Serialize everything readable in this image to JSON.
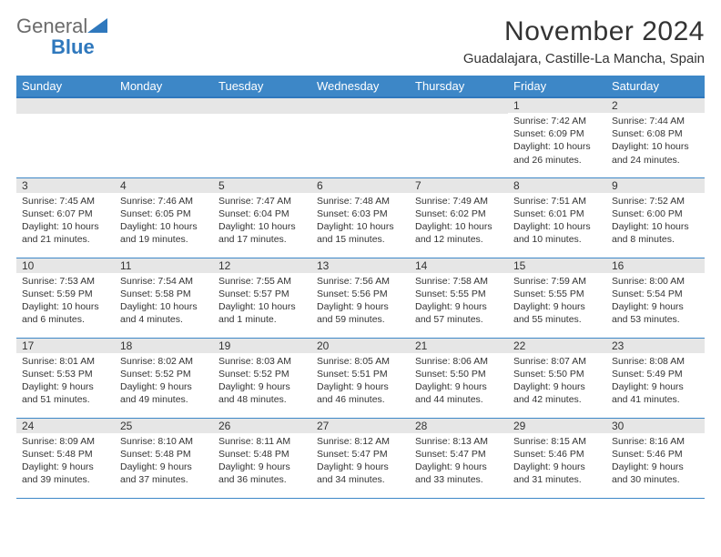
{
  "logo": {
    "text1": "General",
    "text2": "Blue"
  },
  "title": "November 2024",
  "location": "Guadalajara, Castille-La Mancha, Spain",
  "colors": {
    "header_bg": "#3d87c7",
    "header_border": "#2f78bd",
    "daynum_bg": "#e6e6e6",
    "cell_border": "#3d87c7",
    "text": "#333333",
    "logo_gray": "#6b6b6b",
    "logo_blue": "#2f78bd",
    "page_bg": "#ffffff"
  },
  "weekdays": [
    "Sunday",
    "Monday",
    "Tuesday",
    "Wednesday",
    "Thursday",
    "Friday",
    "Saturday"
  ],
  "weeks": [
    [
      null,
      null,
      null,
      null,
      null,
      {
        "d": "1",
        "sr": "Sunrise: 7:42 AM",
        "ss": "Sunset: 6:09 PM",
        "dl1": "Daylight: 10 hours",
        "dl2": "and 26 minutes."
      },
      {
        "d": "2",
        "sr": "Sunrise: 7:44 AM",
        "ss": "Sunset: 6:08 PM",
        "dl1": "Daylight: 10 hours",
        "dl2": "and 24 minutes."
      }
    ],
    [
      {
        "d": "3",
        "sr": "Sunrise: 7:45 AM",
        "ss": "Sunset: 6:07 PM",
        "dl1": "Daylight: 10 hours",
        "dl2": "and 21 minutes."
      },
      {
        "d": "4",
        "sr": "Sunrise: 7:46 AM",
        "ss": "Sunset: 6:05 PM",
        "dl1": "Daylight: 10 hours",
        "dl2": "and 19 minutes."
      },
      {
        "d": "5",
        "sr": "Sunrise: 7:47 AM",
        "ss": "Sunset: 6:04 PM",
        "dl1": "Daylight: 10 hours",
        "dl2": "and 17 minutes."
      },
      {
        "d": "6",
        "sr": "Sunrise: 7:48 AM",
        "ss": "Sunset: 6:03 PM",
        "dl1": "Daylight: 10 hours",
        "dl2": "and 15 minutes."
      },
      {
        "d": "7",
        "sr": "Sunrise: 7:49 AM",
        "ss": "Sunset: 6:02 PM",
        "dl1": "Daylight: 10 hours",
        "dl2": "and 12 minutes."
      },
      {
        "d": "8",
        "sr": "Sunrise: 7:51 AM",
        "ss": "Sunset: 6:01 PM",
        "dl1": "Daylight: 10 hours",
        "dl2": "and 10 minutes."
      },
      {
        "d": "9",
        "sr": "Sunrise: 7:52 AM",
        "ss": "Sunset: 6:00 PM",
        "dl1": "Daylight: 10 hours",
        "dl2": "and 8 minutes."
      }
    ],
    [
      {
        "d": "10",
        "sr": "Sunrise: 7:53 AM",
        "ss": "Sunset: 5:59 PM",
        "dl1": "Daylight: 10 hours",
        "dl2": "and 6 minutes."
      },
      {
        "d": "11",
        "sr": "Sunrise: 7:54 AM",
        "ss": "Sunset: 5:58 PM",
        "dl1": "Daylight: 10 hours",
        "dl2": "and 4 minutes."
      },
      {
        "d": "12",
        "sr": "Sunrise: 7:55 AM",
        "ss": "Sunset: 5:57 PM",
        "dl1": "Daylight: 10 hours",
        "dl2": "and 1 minute."
      },
      {
        "d": "13",
        "sr": "Sunrise: 7:56 AM",
        "ss": "Sunset: 5:56 PM",
        "dl1": "Daylight: 9 hours",
        "dl2": "and 59 minutes."
      },
      {
        "d": "14",
        "sr": "Sunrise: 7:58 AM",
        "ss": "Sunset: 5:55 PM",
        "dl1": "Daylight: 9 hours",
        "dl2": "and 57 minutes."
      },
      {
        "d": "15",
        "sr": "Sunrise: 7:59 AM",
        "ss": "Sunset: 5:55 PM",
        "dl1": "Daylight: 9 hours",
        "dl2": "and 55 minutes."
      },
      {
        "d": "16",
        "sr": "Sunrise: 8:00 AM",
        "ss": "Sunset: 5:54 PM",
        "dl1": "Daylight: 9 hours",
        "dl2": "and 53 minutes."
      }
    ],
    [
      {
        "d": "17",
        "sr": "Sunrise: 8:01 AM",
        "ss": "Sunset: 5:53 PM",
        "dl1": "Daylight: 9 hours",
        "dl2": "and 51 minutes."
      },
      {
        "d": "18",
        "sr": "Sunrise: 8:02 AM",
        "ss": "Sunset: 5:52 PM",
        "dl1": "Daylight: 9 hours",
        "dl2": "and 49 minutes."
      },
      {
        "d": "19",
        "sr": "Sunrise: 8:03 AM",
        "ss": "Sunset: 5:52 PM",
        "dl1": "Daylight: 9 hours",
        "dl2": "and 48 minutes."
      },
      {
        "d": "20",
        "sr": "Sunrise: 8:05 AM",
        "ss": "Sunset: 5:51 PM",
        "dl1": "Daylight: 9 hours",
        "dl2": "and 46 minutes."
      },
      {
        "d": "21",
        "sr": "Sunrise: 8:06 AM",
        "ss": "Sunset: 5:50 PM",
        "dl1": "Daylight: 9 hours",
        "dl2": "and 44 minutes."
      },
      {
        "d": "22",
        "sr": "Sunrise: 8:07 AM",
        "ss": "Sunset: 5:50 PM",
        "dl1": "Daylight: 9 hours",
        "dl2": "and 42 minutes."
      },
      {
        "d": "23",
        "sr": "Sunrise: 8:08 AM",
        "ss": "Sunset: 5:49 PM",
        "dl1": "Daylight: 9 hours",
        "dl2": "and 41 minutes."
      }
    ],
    [
      {
        "d": "24",
        "sr": "Sunrise: 8:09 AM",
        "ss": "Sunset: 5:48 PM",
        "dl1": "Daylight: 9 hours",
        "dl2": "and 39 minutes."
      },
      {
        "d": "25",
        "sr": "Sunrise: 8:10 AM",
        "ss": "Sunset: 5:48 PM",
        "dl1": "Daylight: 9 hours",
        "dl2": "and 37 minutes."
      },
      {
        "d": "26",
        "sr": "Sunrise: 8:11 AM",
        "ss": "Sunset: 5:48 PM",
        "dl1": "Daylight: 9 hours",
        "dl2": "and 36 minutes."
      },
      {
        "d": "27",
        "sr": "Sunrise: 8:12 AM",
        "ss": "Sunset: 5:47 PM",
        "dl1": "Daylight: 9 hours",
        "dl2": "and 34 minutes."
      },
      {
        "d": "28",
        "sr": "Sunrise: 8:13 AM",
        "ss": "Sunset: 5:47 PM",
        "dl1": "Daylight: 9 hours",
        "dl2": "and 33 minutes."
      },
      {
        "d": "29",
        "sr": "Sunrise: 8:15 AM",
        "ss": "Sunset: 5:46 PM",
        "dl1": "Daylight: 9 hours",
        "dl2": "and 31 minutes."
      },
      {
        "d": "30",
        "sr": "Sunrise: 8:16 AM",
        "ss": "Sunset: 5:46 PM",
        "dl1": "Daylight: 9 hours",
        "dl2": "and 30 minutes."
      }
    ]
  ]
}
